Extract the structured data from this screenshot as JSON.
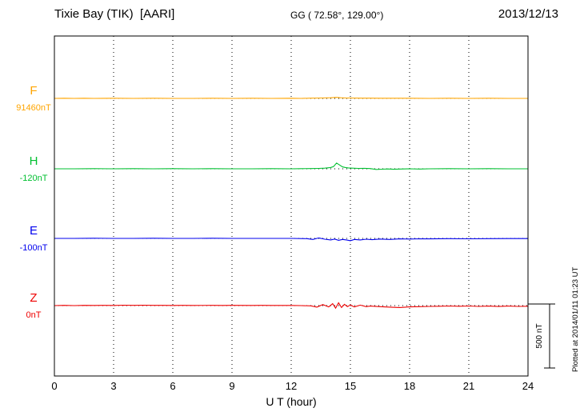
{
  "header": {
    "station": "Tixie Bay (TIK)  [AARI]",
    "coords": "GG ( 72.58°, 129.00°)",
    "date": "2013/12/13"
  },
  "footer_note": "Plotted at 2014/01/11 01:23 UT",
  "chart_data": {
    "type": "line",
    "title": "Tixie Bay (TIK) [AARI] magnetogram 2013/12/13",
    "xlabel": "U T (hour)",
    "x_range": [
      0,
      24
    ],
    "x_ticks": [
      0,
      3,
      6,
      9,
      12,
      15,
      18,
      21,
      24
    ],
    "grid": "dotted",
    "scale_bar": {
      "label": "500 nT",
      "value_nT": 500
    },
    "series": [
      {
        "name": "F",
        "baseline_label": "91460nT",
        "color": "#FFA500",
        "points": [
          [
            0,
            0
          ],
          [
            0.5,
            1
          ],
          [
            1,
            0
          ],
          [
            1.5,
            1
          ],
          [
            2,
            0
          ],
          [
            3,
            1
          ],
          [
            4,
            0
          ],
          [
            5,
            1
          ],
          [
            6,
            0
          ],
          [
            7,
            0
          ],
          [
            8,
            1
          ],
          [
            9,
            0
          ],
          [
            10,
            1
          ],
          [
            11,
            0
          ],
          [
            12,
            1
          ],
          [
            12.5,
            0
          ],
          [
            13,
            2
          ],
          [
            13.5,
            3
          ],
          [
            14,
            5
          ],
          [
            14.3,
            8
          ],
          [
            14.5,
            5
          ],
          [
            14.8,
            3
          ],
          [
            15,
            3
          ],
          [
            15.5,
            2
          ],
          [
            16,
            2
          ],
          [
            16.5,
            1
          ],
          [
            17,
            1
          ],
          [
            18,
            1
          ],
          [
            19,
            0
          ],
          [
            20,
            1
          ],
          [
            21,
            0
          ],
          [
            22,
            1
          ],
          [
            23,
            0
          ],
          [
            24,
            0
          ]
        ]
      },
      {
        "name": "H",
        "baseline_label": "-120nT",
        "color": "#00C030",
        "points": [
          [
            0,
            0
          ],
          [
            1,
            0
          ],
          [
            2,
            1
          ],
          [
            3,
            0
          ],
          [
            4,
            1
          ],
          [
            5,
            0
          ],
          [
            6,
            1
          ],
          [
            7,
            0
          ],
          [
            8,
            1
          ],
          [
            9,
            0
          ],
          [
            10,
            0
          ],
          [
            11,
            1
          ],
          [
            12,
            0
          ],
          [
            12.5,
            1
          ],
          [
            13,
            2
          ],
          [
            13.4,
            3
          ],
          [
            13.7,
            5
          ],
          [
            14.0,
            10
          ],
          [
            14.15,
            18
          ],
          [
            14.3,
            45
          ],
          [
            14.45,
            30
          ],
          [
            14.6,
            15
          ],
          [
            14.75,
            10
          ],
          [
            14.9,
            7
          ],
          [
            15.1,
            5
          ],
          [
            15.4,
            3
          ],
          [
            15.7,
            4
          ],
          [
            16,
            2
          ],
          [
            16.3,
            -5
          ],
          [
            16.6,
            -3
          ],
          [
            16.9,
            -1
          ],
          [
            17.2,
            -4
          ],
          [
            17.5,
            -2
          ],
          [
            18,
            0
          ],
          [
            18.5,
            -2
          ],
          [
            19,
            0
          ],
          [
            20,
            1
          ],
          [
            21,
            0
          ],
          [
            22,
            1
          ],
          [
            23,
            0
          ],
          [
            24,
            0
          ]
        ]
      },
      {
        "name": "E",
        "baseline_label": "-100nT",
        "color": "#0000EE",
        "points": [
          [
            0,
            0
          ],
          [
            1,
            0
          ],
          [
            2,
            1
          ],
          [
            3,
            0
          ],
          [
            4,
            0
          ],
          [
            5,
            1
          ],
          [
            6,
            0
          ],
          [
            7,
            0
          ],
          [
            8,
            1
          ],
          [
            9,
            0
          ],
          [
            10,
            0
          ],
          [
            11,
            0
          ],
          [
            12,
            0
          ],
          [
            12.8,
            -2
          ],
          [
            13.1,
            -8
          ],
          [
            13.4,
            4
          ],
          [
            13.7,
            -6
          ],
          [
            14.0,
            -12
          ],
          [
            14.2,
            -5
          ],
          [
            14.4,
            -15
          ],
          [
            14.6,
            -8
          ],
          [
            14.8,
            -12
          ],
          [
            15.0,
            -18
          ],
          [
            15.2,
            -8
          ],
          [
            15.5,
            -12
          ],
          [
            15.8,
            -6
          ],
          [
            16.1,
            -10
          ],
          [
            16.5,
            -5
          ],
          [
            17,
            -8
          ],
          [
            17.5,
            -4
          ],
          [
            18,
            -5
          ],
          [
            18.5,
            -3
          ],
          [
            19,
            -4
          ],
          [
            20,
            -2
          ],
          [
            21,
            -3
          ],
          [
            22,
            -2
          ],
          [
            23,
            -1
          ],
          [
            24,
            -1
          ]
        ]
      },
      {
        "name": "Z",
        "baseline_label": "0nT",
        "color": "#EE0000",
        "points": [
          [
            0,
            0
          ],
          [
            0.5,
            2
          ],
          [
            1,
            0
          ],
          [
            1.5,
            2
          ],
          [
            2,
            1
          ],
          [
            2.5,
            2
          ],
          [
            3,
            1
          ],
          [
            3.5,
            3
          ],
          [
            4,
            2
          ],
          [
            4.5,
            3
          ],
          [
            5,
            2
          ],
          [
            5.5,
            2
          ],
          [
            6,
            1
          ],
          [
            6.5,
            2
          ],
          [
            7,
            1
          ],
          [
            8,
            2
          ],
          [
            8.5,
            1
          ],
          [
            9,
            2
          ],
          [
            10,
            1
          ],
          [
            10.5,
            2
          ],
          [
            11,
            1
          ],
          [
            12,
            1
          ],
          [
            12.5,
            0
          ],
          [
            13,
            -2
          ],
          [
            13.3,
            -12
          ],
          [
            13.6,
            8
          ],
          [
            13.9,
            -10
          ],
          [
            14.1,
            15
          ],
          [
            14.25,
            -20
          ],
          [
            14.4,
            22
          ],
          [
            14.55,
            -15
          ],
          [
            14.7,
            10
          ],
          [
            14.85,
            -8
          ],
          [
            15,
            5
          ],
          [
            15.2,
            -10
          ],
          [
            15.5,
            4
          ],
          [
            15.8,
            -8
          ],
          [
            16,
            -4
          ],
          [
            16.5,
            -8
          ],
          [
            17,
            -12
          ],
          [
            17.5,
            -15
          ],
          [
            18,
            -10
          ],
          [
            18.5,
            -8
          ],
          [
            19,
            -6
          ],
          [
            19.5,
            -5
          ],
          [
            20,
            -3
          ],
          [
            20.5,
            -5
          ],
          [
            21,
            -3
          ],
          [
            21.5,
            -6
          ],
          [
            22,
            -4
          ],
          [
            22.5,
            -7
          ],
          [
            23,
            -4
          ],
          [
            23.5,
            -6
          ],
          [
            24,
            -5
          ]
        ]
      }
    ]
  }
}
